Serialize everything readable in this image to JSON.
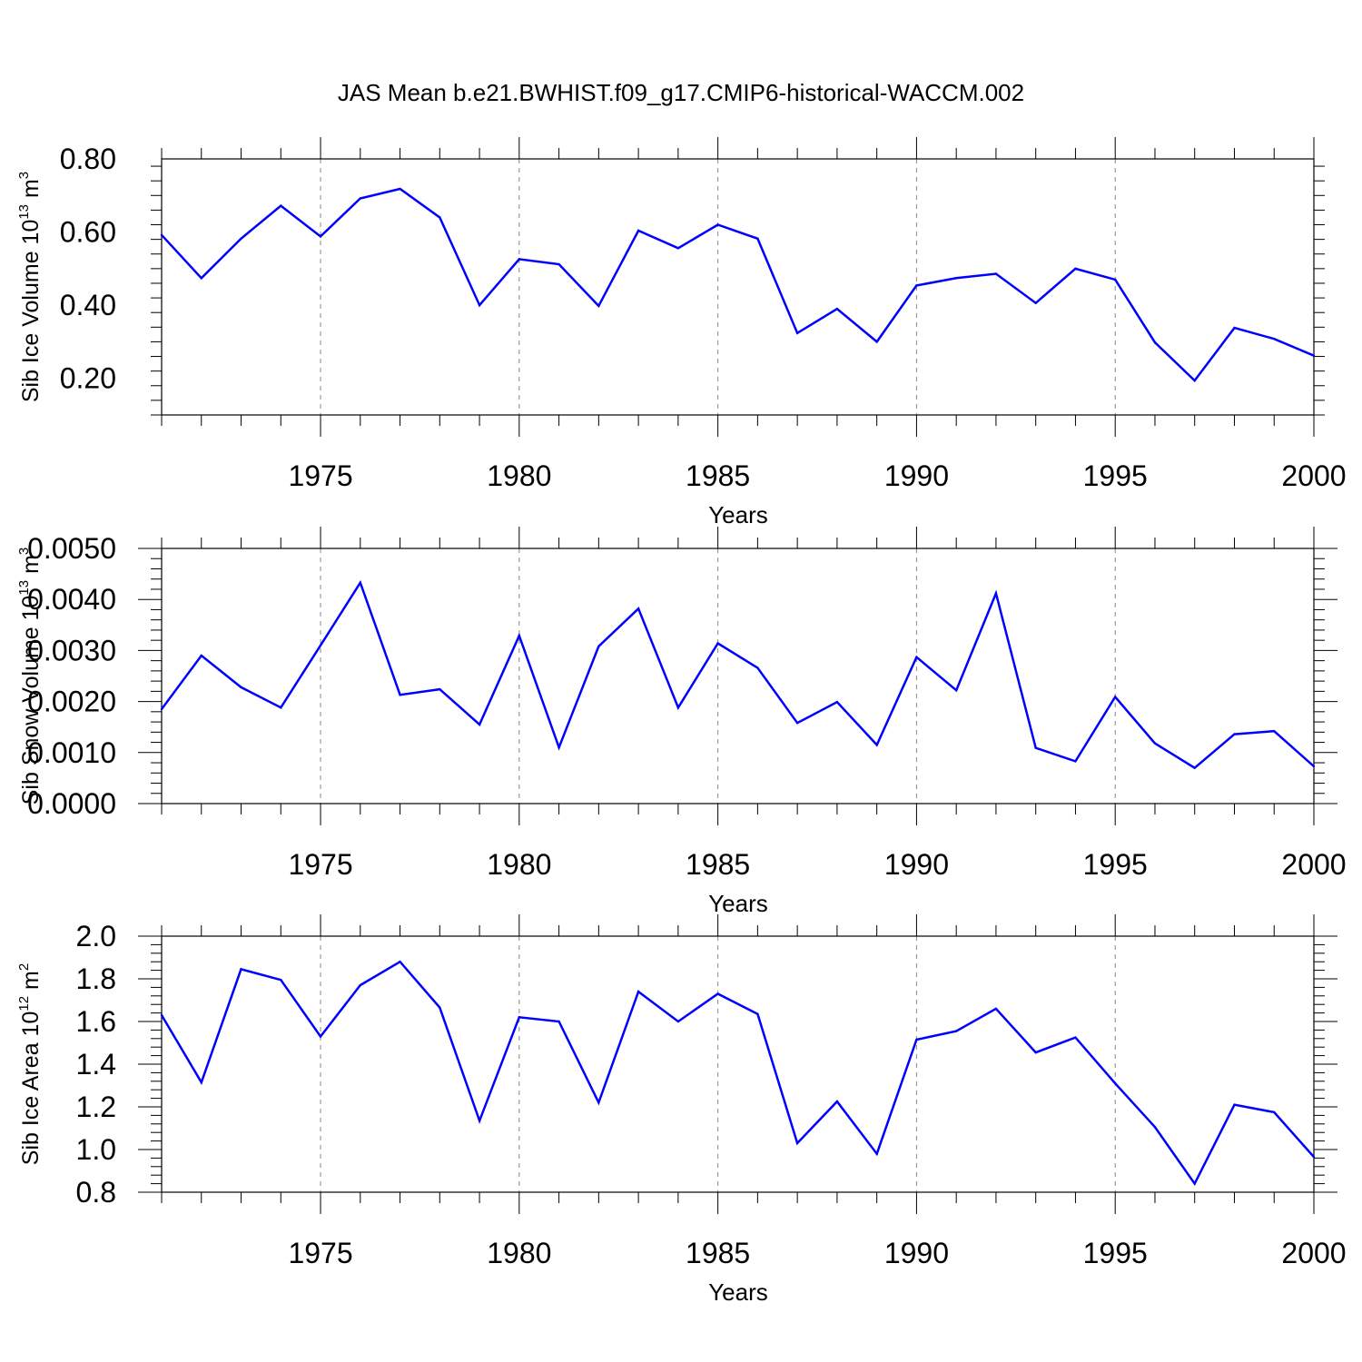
{
  "figure_title": "JAS Mean b.e21.BWHIST.f09_g17.CMIP6-historical-WACCM.002",
  "chart_data": [
    {
      "type": "line",
      "ylabel": {
        "base": "Sib Ice Volume 10",
        "exp": "13",
        "unit": " m",
        "unit_exp": "3"
      },
      "xlabel": "Years",
      "xlim": [
        1971,
        2000
      ],
      "ylim": [
        0.1,
        0.8
      ],
      "yticks": [
        0.2,
        0.4,
        0.6,
        0.8
      ],
      "ytick_labels": [
        "0.20",
        "0.40",
        "0.60",
        "0.80"
      ],
      "xticks": [
        1975,
        1980,
        1985,
        1990,
        1995,
        2000
      ],
      "xtick_labels": [
        "1975",
        "1980",
        "1985",
        "1990",
        "1995",
        "2000"
      ],
      "line_color": "#0000ff",
      "grid": "vertical dashed at major x ticks",
      "x": [
        1971,
        1972,
        1973,
        1974,
        1975,
        1976,
        1977,
        1978,
        1979,
        1980,
        1981,
        1982,
        1983,
        1984,
        1985,
        1986,
        1987,
        1988,
        1989,
        1990,
        1991,
        1992,
        1993,
        1994,
        1995,
        1996,
        1997,
        1998,
        1999,
        2000
      ],
      "values": [
        0.592,
        0.474,
        0.582,
        0.672,
        0.588,
        0.692,
        0.718,
        0.64,
        0.4,
        0.526,
        0.512,
        0.398,
        0.604,
        0.556,
        0.62,
        0.582,
        0.324,
        0.39,
        0.3,
        0.454,
        0.474,
        0.486,
        0.406,
        0.5,
        0.47,
        0.298,
        0.194,
        0.338,
        0.308,
        0.262
      ]
    },
    {
      "type": "line",
      "ylabel": {
        "base": "Sib Snow Volume 10",
        "exp": "13",
        "unit": " m",
        "unit_exp": "3"
      },
      "xlabel": "Years",
      "xlim": [
        1971,
        2000
      ],
      "ylim": [
        0.0,
        0.005
      ],
      "yticks": [
        0.0,
        0.001,
        0.002,
        0.003,
        0.004,
        0.005
      ],
      "ytick_labels": [
        "0.0000",
        "0.0010",
        "0.0020",
        "0.0030",
        "0.0040",
        "0.0050"
      ],
      "xticks": [
        1975,
        1980,
        1985,
        1990,
        1995,
        2000
      ],
      "xtick_labels": [
        "1975",
        "1980",
        "1985",
        "1990",
        "1995",
        "2000"
      ],
      "line_color": "#0000ff",
      "grid": "vertical dashed at major x ticks",
      "x": [
        1971,
        1972,
        1973,
        1974,
        1975,
        1976,
        1977,
        1978,
        1979,
        1980,
        1981,
        1982,
        1983,
        1984,
        1985,
        1986,
        1987,
        1988,
        1989,
        1990,
        1991,
        1992,
        1993,
        1994,
        1995,
        1996,
        1997,
        1998,
        1999,
        2000
      ],
      "values": [
        0.00185,
        0.0029,
        0.00228,
        0.00188,
        0.0031,
        0.00433,
        0.00213,
        0.00224,
        0.00155,
        0.00329,
        0.0011,
        0.00308,
        0.00382,
        0.00188,
        0.00314,
        0.00266,
        0.00158,
        0.00199,
        0.00115,
        0.00287,
        0.00222,
        0.00412,
        0.00109,
        0.00083,
        0.00209,
        0.00118,
        0.0007,
        0.00136,
        0.00142,
        0.00073
      ]
    },
    {
      "type": "line",
      "ylabel": {
        "base": "Sib Ice Area 10",
        "exp": "12",
        "unit": " m",
        "unit_exp": "2"
      },
      "xlabel": "Years",
      "xlim": [
        1971,
        2000
      ],
      "ylim": [
        0.8,
        2.0
      ],
      "yticks": [
        0.8,
        1.0,
        1.2,
        1.4,
        1.6,
        1.8,
        2.0
      ],
      "ytick_labels": [
        "0.8",
        "1.0",
        "1.2",
        "1.4",
        "1.6",
        "1.8",
        "2.0"
      ],
      "xticks": [
        1975,
        1980,
        1985,
        1990,
        1995,
        2000
      ],
      "xtick_labels": [
        "1975",
        "1980",
        "1985",
        "1990",
        "1995",
        "2000"
      ],
      "line_color": "#0000ff",
      "grid": "vertical dashed at major x ticks",
      "x": [
        1971,
        1972,
        1973,
        1974,
        1975,
        1976,
        1977,
        1978,
        1979,
        1980,
        1981,
        1982,
        1983,
        1984,
        1985,
        1986,
        1987,
        1988,
        1989,
        1990,
        1991,
        1992,
        1993,
        1994,
        1995,
        1996,
        1997,
        1998,
        1999,
        2000
      ],
      "values": [
        1.63,
        1.315,
        1.845,
        1.795,
        1.53,
        1.77,
        1.88,
        1.665,
        1.135,
        1.62,
        1.6,
        1.22,
        1.74,
        1.6,
        1.73,
        1.635,
        1.03,
        1.225,
        0.98,
        1.515,
        1.555,
        1.66,
        1.455,
        1.525,
        1.31,
        1.105,
        0.84,
        1.21,
        1.175,
        0.965
      ]
    }
  ]
}
